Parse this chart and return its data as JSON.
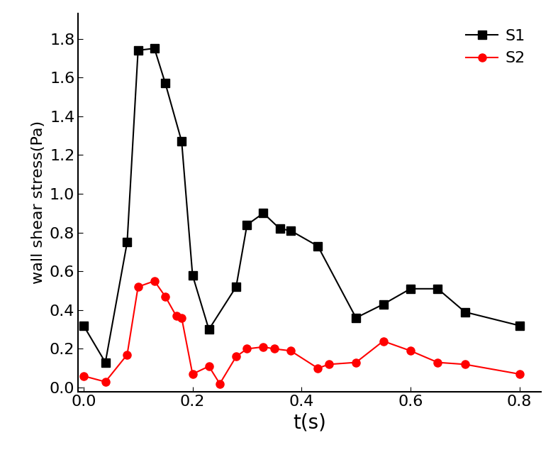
{
  "S1_x": [
    0.0,
    0.04,
    0.08,
    0.1,
    0.13,
    0.15,
    0.18,
    0.2,
    0.23,
    0.28,
    0.3,
    0.33,
    0.36,
    0.38,
    0.43,
    0.5,
    0.55,
    0.6,
    0.65,
    0.7,
    0.8
  ],
  "S1_y": [
    0.32,
    0.13,
    0.75,
    1.74,
    1.75,
    1.57,
    1.27,
    0.58,
    0.3,
    0.52,
    0.84,
    0.9,
    0.82,
    0.81,
    0.73,
    0.36,
    0.43,
    0.51,
    0.51,
    0.39,
    0.32
  ],
  "S2_x": [
    0.0,
    0.04,
    0.08,
    0.1,
    0.13,
    0.15,
    0.17,
    0.18,
    0.2,
    0.23,
    0.25,
    0.28,
    0.3,
    0.33,
    0.35,
    0.38,
    0.43,
    0.45,
    0.5,
    0.55,
    0.6,
    0.65,
    0.7,
    0.8
  ],
  "S2_y": [
    0.06,
    0.03,
    0.17,
    0.52,
    0.55,
    0.47,
    0.37,
    0.36,
    0.07,
    0.11,
    0.02,
    0.16,
    0.2,
    0.21,
    0.2,
    0.19,
    0.1,
    0.12,
    0.13,
    0.24,
    0.19,
    0.13,
    0.12,
    0.07
  ],
  "S1_color": "#000000",
  "S2_color": "#ff0000",
  "S1_marker": "s",
  "S2_marker": "o",
  "S1_label": "S1",
  "S2_label": "S2",
  "xlabel": "t(s)",
  "ylabel": "wall shear stress(Pa)",
  "xlim": [
    -0.01,
    0.84
  ],
  "ylim": [
    -0.02,
    1.93
  ],
  "xticks": [
    0.0,
    0.2,
    0.4,
    0.6,
    0.8
  ],
  "yticks": [
    0.0,
    0.2,
    0.4,
    0.6,
    0.8,
    1.0,
    1.2,
    1.4,
    1.6,
    1.8
  ],
  "linewidth": 1.5,
  "markersize": 8,
  "xlabel_fontsize": 20,
  "ylabel_fontsize": 16,
  "tick_fontsize": 16,
  "legend_fontsize": 16,
  "legend_loc": "upper right",
  "fig_width": 7.87,
  "fig_height": 6.34,
  "fig_dpi": 100
}
